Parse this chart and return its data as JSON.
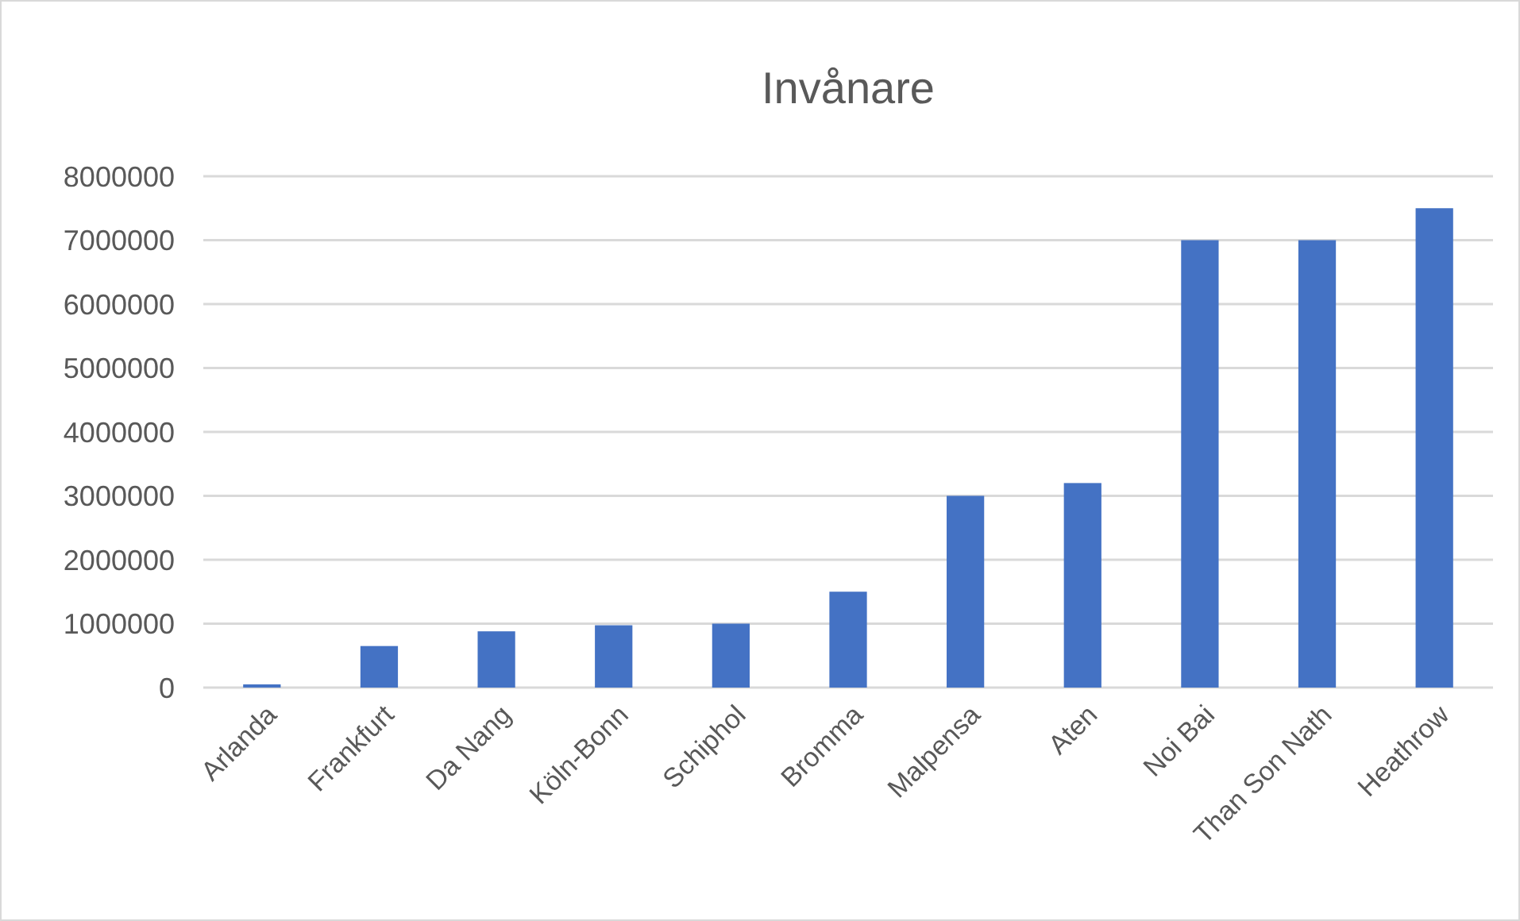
{
  "chart_data": {
    "type": "bar",
    "title": "Invånare",
    "categories": [
      "Arlanda",
      "Frankfurt",
      "Da Nang",
      "Köln-Bonn",
      "Schiphol",
      "Bromma",
      "Malpensa",
      "Aten",
      "Noi Bai",
      "Than Son Nath",
      "Heathrow"
    ],
    "values": [
      50000,
      650000,
      880000,
      975000,
      1000000,
      1500000,
      3000000,
      3200000,
      7000000,
      7000000,
      7500000
    ],
    "color": "#4472c4",
    "ylim": [
      0,
      8000000
    ],
    "yticks": [
      0,
      1000000,
      2000000,
      3000000,
      4000000,
      5000000,
      6000000,
      7000000,
      8000000
    ],
    "grid": "y"
  }
}
